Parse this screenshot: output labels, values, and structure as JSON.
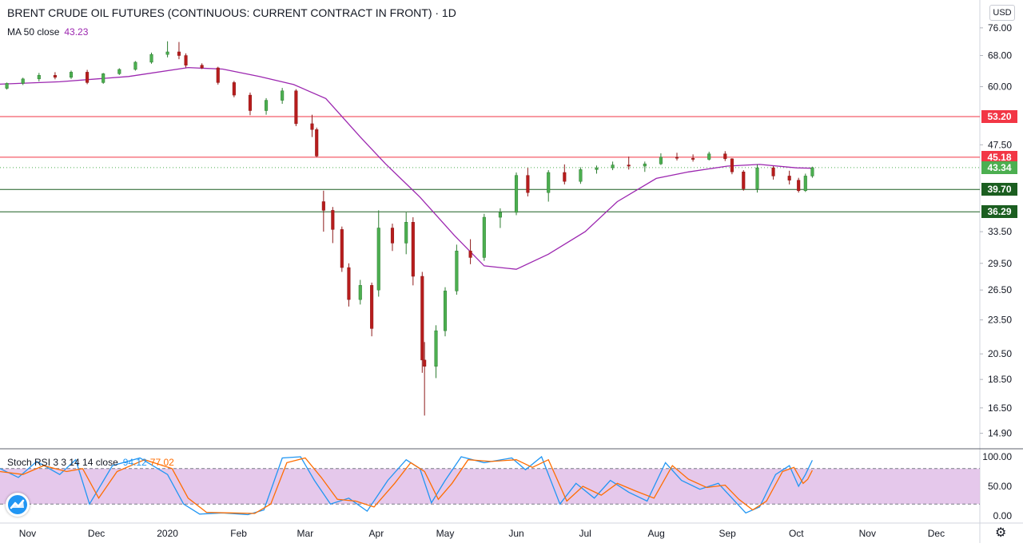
{
  "header": {
    "title": "BRENT CRUDE OIL FUTURES (CONTINUOUS: CURRENT CONTRACT IN FRONT) · 1D",
    "ma_label": "MA 50 close",
    "ma_value": "43.23",
    "currency_button": "USD"
  },
  "oscillator": {
    "label": "Stoch RSI 3 3 14 14 close",
    "k_value": "94.12",
    "d_value": "77.02",
    "k_color": "#2196f3",
    "d_color": "#ff6d00",
    "band_color": "#e1bee7",
    "y_ticks": [
      "100.00",
      "50.00",
      "0.00"
    ],
    "upper_band": 80,
    "lower_band": 20
  },
  "price_labels": [
    {
      "text": "53.20",
      "color": "#f23645"
    },
    {
      "text": "45.18",
      "color": "#f23645"
    },
    {
      "text": "43.34",
      "color": "#4caf50"
    },
    {
      "text": "39.70",
      "color": "#1b5e20"
    },
    {
      "text": "36.29",
      "color": "#1b5e20"
    }
  ],
  "chart_data": {
    "type": "candlestick",
    "title": "BRENT CRUDE OIL FUTURES (CONTINUOUS: CURRENT CONTRACT IN FRONT) · 1D",
    "y_scale": "log",
    "ylim": [
      14.0,
      85.0
    ],
    "y_ticks": [
      "76.00",
      "68.00",
      "60.00",
      "53.20",
      "47.50",
      "45.18",
      "43.34",
      "39.70",
      "36.29",
      "33.50",
      "29.50",
      "26.50",
      "23.50",
      "20.50",
      "18.50",
      "16.50",
      "14.90"
    ],
    "x_ticks": [
      "Nov",
      "Dec",
      "2020",
      "Feb",
      "Mar",
      "Apr",
      "May",
      "Jun",
      "Jul",
      "Aug",
      "Sep",
      "Oct",
      "Nov",
      "Dec"
    ],
    "x_range": [
      "2019-10-20",
      "2020-12-20"
    ],
    "last_close": 43.34,
    "horizontal_levels": [
      {
        "value": 53.2,
        "color": "#f23645"
      },
      {
        "value": 45.18,
        "color": "#f23645"
      },
      {
        "value": 39.7,
        "color": "#1b5e20"
      },
      {
        "value": 36.29,
        "color": "#1b5e20"
      }
    ],
    "series": [
      {
        "name": "MA 50 close",
        "color": "#9c27b0",
        "points": [
          [
            "2019-10-20",
            60.6
          ],
          [
            "2019-11-15",
            61.2
          ],
          [
            "2019-12-15",
            62.5
          ],
          [
            "2020-01-10",
            64.8
          ],
          [
            "2020-01-25",
            64.4
          ],
          [
            "2020-02-10",
            62.5
          ],
          [
            "2020-02-25",
            60.5
          ],
          [
            "2020-03-10",
            57.2
          ],
          [
            "2020-03-25",
            49.0
          ],
          [
            "2020-04-05",
            44.0
          ],
          [
            "2020-04-20",
            38.5
          ],
          [
            "2020-05-05",
            33.0
          ],
          [
            "2020-05-18",
            29.2
          ],
          [
            "2020-06-01",
            28.8
          ],
          [
            "2020-06-15",
            30.6
          ],
          [
            "2020-07-01",
            33.5
          ],
          [
            "2020-07-15",
            37.8
          ],
          [
            "2020-08-01",
            41.5
          ],
          [
            "2020-08-15",
            42.6
          ],
          [
            "2020-09-01",
            43.6
          ],
          [
            "2020-09-15",
            43.9
          ],
          [
            "2020-10-01",
            43.3
          ],
          [
            "2020-10-08",
            43.23
          ]
        ]
      },
      {
        "name": "price",
        "candles": [
          [
            "2019-10-23",
            59.6,
            61.0,
            59.3,
            60.8
          ],
          [
            "2019-10-30",
            60.8,
            62.2,
            60.4,
            61.9
          ],
          [
            "2019-11-06",
            61.9,
            63.4,
            61.3,
            62.8
          ],
          [
            "2019-11-13",
            62.8,
            63.6,
            61.8,
            62.3
          ],
          [
            "2019-11-20",
            62.3,
            64.0,
            61.9,
            63.6
          ],
          [
            "2019-11-27",
            63.6,
            64.2,
            60.6,
            61.0
          ],
          [
            "2019-12-04",
            61.0,
            63.4,
            60.7,
            63.2
          ],
          [
            "2019-12-11",
            63.2,
            64.6,
            62.9,
            64.3
          ],
          [
            "2019-12-18",
            64.3,
            66.5,
            64.0,
            66.2
          ],
          [
            "2019-12-25",
            66.2,
            68.8,
            65.8,
            68.3
          ],
          [
            "2020-01-01",
            68.3,
            72.0,
            67.5,
            69.0
          ],
          [
            "2020-01-06",
            69.0,
            71.8,
            67.0,
            68.0
          ],
          [
            "2020-01-09",
            68.0,
            68.6,
            64.8,
            65.4
          ],
          [
            "2020-01-16",
            65.4,
            65.9,
            64.4,
            64.7
          ],
          [
            "2020-01-23",
            64.7,
            65.0,
            60.5,
            61.0
          ],
          [
            "2020-01-30",
            61.0,
            61.4,
            57.5,
            58.0
          ],
          [
            "2020-02-06",
            58.0,
            58.6,
            53.5,
            54.5
          ],
          [
            "2020-02-13",
            54.5,
            57.3,
            53.6,
            56.8
          ],
          [
            "2020-02-20",
            56.8,
            59.7,
            56.0,
            59.0
          ],
          [
            "2020-02-26",
            59.0,
            59.4,
            51.2,
            51.7
          ],
          [
            "2020-03-04",
            51.7,
            53.6,
            49.0,
            50.5
          ],
          [
            "2020-03-06",
            50.5,
            50.9,
            45.2,
            45.4
          ],
          [
            "2020-03-09",
            37.8,
            39.5,
            33.5,
            36.5
          ],
          [
            "2020-03-13",
            36.5,
            37.0,
            32.0,
            33.8
          ],
          [
            "2020-03-17",
            33.8,
            34.2,
            28.5,
            29.0
          ],
          [
            "2020-03-20",
            29.0,
            29.5,
            24.8,
            25.5
          ],
          [
            "2020-03-25",
            25.5,
            27.6,
            25.0,
            27.0
          ],
          [
            "2020-03-30",
            27.0,
            27.3,
            22.0,
            22.7
          ],
          [
            "2020-04-02",
            26.5,
            36.5,
            25.8,
            34.0
          ],
          [
            "2020-04-08",
            34.0,
            34.6,
            31.0,
            32.0
          ],
          [
            "2020-04-14",
            32.0,
            36.2,
            30.6,
            34.8
          ],
          [
            "2020-04-17",
            34.8,
            35.5,
            27.0,
            28.0
          ],
          [
            "2020-04-21",
            28.0,
            28.5,
            19.0,
            20.0
          ],
          [
            "2020-04-22",
            20.0,
            21.5,
            16.0,
            19.5
          ],
          [
            "2020-04-27",
            19.5,
            23.0,
            18.6,
            22.5
          ],
          [
            "2020-05-01",
            22.5,
            26.8,
            22.0,
            26.4
          ],
          [
            "2020-05-06",
            26.4,
            31.8,
            26.0,
            31.0
          ],
          [
            "2020-05-12",
            31.0,
            32.5,
            29.4,
            30.2
          ],
          [
            "2020-05-18",
            30.2,
            36.0,
            29.8,
            35.5
          ],
          [
            "2020-05-25",
            35.5,
            36.8,
            34.0,
            36.2
          ],
          [
            "2020-06-01",
            36.2,
            42.5,
            35.8,
            42.0
          ],
          [
            "2020-06-06",
            42.0,
            43.3,
            38.6,
            39.2
          ],
          [
            "2020-06-15",
            39.2,
            42.9,
            37.8,
            42.5
          ],
          [
            "2020-06-22",
            42.5,
            43.9,
            40.5,
            41.0
          ],
          [
            "2020-06-29",
            41.0,
            43.4,
            40.6,
            43.0
          ],
          [
            "2020-07-06",
            43.0,
            43.7,
            42.3,
            43.3
          ],
          [
            "2020-07-13",
            43.3,
            44.4,
            42.9,
            43.8
          ],
          [
            "2020-07-20",
            43.8,
            45.3,
            43.0,
            43.6
          ],
          [
            "2020-07-27",
            43.6,
            44.4,
            42.6,
            44.0
          ],
          [
            "2020-08-03",
            44.0,
            45.9,
            43.8,
            45.2
          ],
          [
            "2020-08-10",
            45.2,
            46.0,
            44.6,
            45.0
          ],
          [
            "2020-08-17",
            45.0,
            45.7,
            44.4,
            44.8
          ],
          [
            "2020-08-24",
            44.8,
            46.2,
            44.6,
            45.8
          ],
          [
            "2020-08-31",
            45.8,
            46.3,
            44.5,
            44.9
          ],
          [
            "2020-09-03",
            44.9,
            45.0,
            42.2,
            42.6
          ],
          [
            "2020-09-08",
            42.6,
            42.9,
            39.5,
            39.8
          ],
          [
            "2020-09-14",
            39.8,
            43.9,
            39.2,
            43.3
          ],
          [
            "2020-09-21",
            43.3,
            43.6,
            41.3,
            41.9
          ],
          [
            "2020-09-28",
            41.9,
            42.8,
            40.5,
            41.2
          ],
          [
            "2020-10-02",
            41.2,
            41.6,
            39.2,
            39.5
          ],
          [
            "2020-10-05",
            39.5,
            42.3,
            39.3,
            41.9
          ],
          [
            "2020-10-08",
            41.9,
            43.5,
            41.6,
            43.34
          ]
        ]
      }
    ],
    "oscillator_series": [
      {
        "name": "K",
        "values": [
          [
            "2019-10-20",
            80
          ],
          [
            "2019-10-28",
            65
          ],
          [
            "2019-11-05",
            92
          ],
          [
            "2019-11-15",
            70
          ],
          [
            "2019-11-22",
            95
          ],
          [
            "2019-11-28",
            20
          ],
          [
            "2019-12-08",
            85
          ],
          [
            "2019-12-20",
            98
          ],
          [
            "2020-01-01",
            70
          ],
          [
            "2020-01-08",
            20
          ],
          [
            "2020-01-15",
            3
          ],
          [
            "2020-01-25",
            5
          ],
          [
            "2020-02-05",
            2
          ],
          [
            "2020-02-12",
            10
          ],
          [
            "2020-02-20",
            98
          ],
          [
            "2020-02-28",
            100
          ],
          [
            "2020-03-05",
            60
          ],
          [
            "2020-03-12",
            20
          ],
          [
            "2020-03-20",
            30
          ],
          [
            "2020-03-28",
            8
          ],
          [
            "2020-04-06",
            60
          ],
          [
            "2020-04-14",
            95
          ],
          [
            "2020-04-20",
            80
          ],
          [
            "2020-04-25",
            22
          ],
          [
            "2020-05-01",
            60
          ],
          [
            "2020-05-08",
            100
          ],
          [
            "2020-05-18",
            90
          ],
          [
            "2020-05-30",
            98
          ],
          [
            "2020-06-05",
            78
          ],
          [
            "2020-06-12",
            100
          ],
          [
            "2020-06-20",
            20
          ],
          [
            "2020-06-27",
            55
          ],
          [
            "2020-07-05",
            30
          ],
          [
            "2020-07-12",
            60
          ],
          [
            "2020-07-20",
            40
          ],
          [
            "2020-07-28",
            25
          ],
          [
            "2020-08-05",
            90
          ],
          [
            "2020-08-12",
            60
          ],
          [
            "2020-08-20",
            45
          ],
          [
            "2020-08-28",
            55
          ],
          [
            "2020-09-03",
            30
          ],
          [
            "2020-09-09",
            5
          ],
          [
            "2020-09-15",
            15
          ],
          [
            "2020-09-22",
            70
          ],
          [
            "2020-09-28",
            85
          ],
          [
            "2020-10-02",
            50
          ],
          [
            "2020-10-05",
            70
          ],
          [
            "2020-10-08",
            94.12
          ]
        ]
      },
      {
        "name": "D",
        "values": [
          [
            "2019-10-20",
            75
          ],
          [
            "2019-10-30",
            70
          ],
          [
            "2019-11-08",
            85
          ],
          [
            "2019-11-18",
            75
          ],
          [
            "2019-11-25",
            80
          ],
          [
            "2019-12-02",
            30
          ],
          [
            "2019-12-10",
            75
          ],
          [
            "2019-12-22",
            95
          ],
          [
            "2020-01-03",
            80
          ],
          [
            "2020-01-10",
            30
          ],
          [
            "2020-01-18",
            6
          ],
          [
            "2020-01-28",
            5
          ],
          [
            "2020-02-08",
            4
          ],
          [
            "2020-02-15",
            20
          ],
          [
            "2020-02-22",
            90
          ],
          [
            "2020-03-01",
            98
          ],
          [
            "2020-03-08",
            65
          ],
          [
            "2020-03-15",
            28
          ],
          [
            "2020-03-23",
            25
          ],
          [
            "2020-03-31",
            15
          ],
          [
            "2020-04-09",
            55
          ],
          [
            "2020-04-16",
            90
          ],
          [
            "2020-04-22",
            75
          ],
          [
            "2020-04-28",
            28
          ],
          [
            "2020-05-04",
            55
          ],
          [
            "2020-05-11",
            95
          ],
          [
            "2020-05-21",
            92
          ],
          [
            "2020-06-01",
            95
          ],
          [
            "2020-06-08",
            82
          ],
          [
            "2020-06-15",
            95
          ],
          [
            "2020-06-23",
            25
          ],
          [
            "2020-06-30",
            50
          ],
          [
            "2020-07-08",
            35
          ],
          [
            "2020-07-15",
            55
          ],
          [
            "2020-07-23",
            42
          ],
          [
            "2020-07-31",
            30
          ],
          [
            "2020-08-08",
            85
          ],
          [
            "2020-08-15",
            62
          ],
          [
            "2020-08-23",
            48
          ],
          [
            "2020-08-31",
            52
          ],
          [
            "2020-09-06",
            28
          ],
          [
            "2020-09-12",
            10
          ],
          [
            "2020-09-18",
            25
          ],
          [
            "2020-09-25",
            75
          ],
          [
            "2020-09-30",
            82
          ],
          [
            "2020-10-04",
            55
          ],
          [
            "2020-10-06",
            62
          ],
          [
            "2020-10-08",
            77.02
          ]
        ]
      }
    ]
  }
}
